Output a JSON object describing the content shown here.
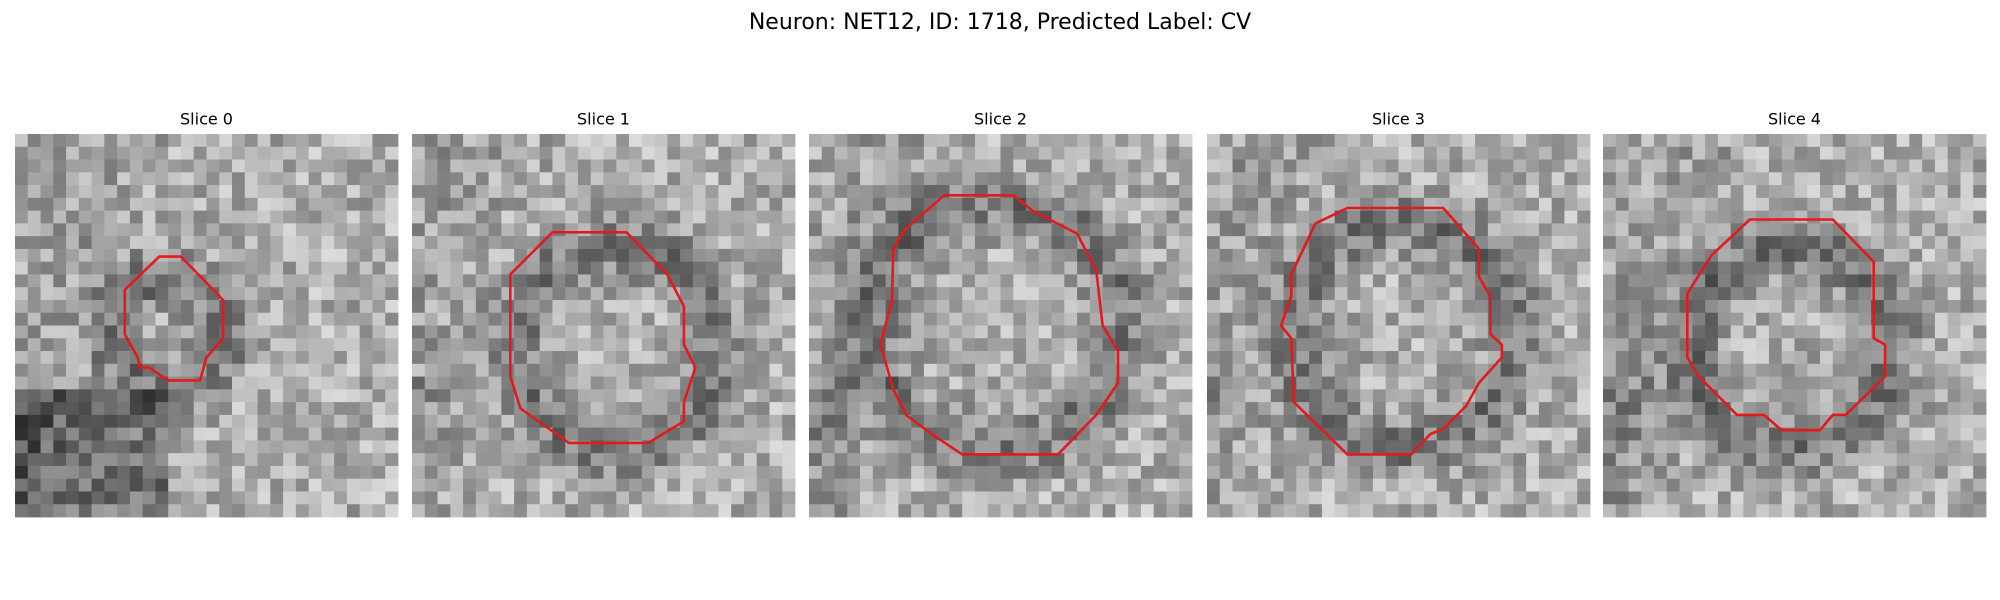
{
  "title": "Neuron: NET12, ID: 1718, Predicted Label: CV",
  "panels": [
    {
      "title": "Slice 0"
    },
    {
      "title": "Slice 1"
    },
    {
      "title": "Slice 2"
    },
    {
      "title": "Slice 3"
    },
    {
      "title": "Slice 4"
    }
  ]
}
